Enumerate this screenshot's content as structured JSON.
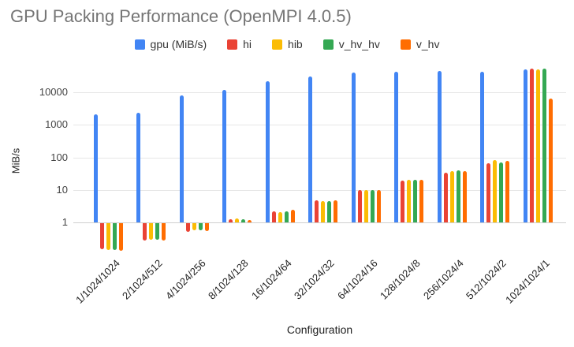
{
  "chart_data": {
    "type": "bar",
    "title": "GPU Packing Performance (OpenMPI 4.0.5)",
    "xlabel": "Configuration",
    "ylabel": "MiB/s",
    "y_scale": "log",
    "y_ticks": [
      1,
      10,
      100,
      1000,
      10000
    ],
    "ylim": [
      0.1,
      60000
    ],
    "grid": true,
    "legend_position": "top",
    "categories": [
      "1/1024/1024",
      "2/1024/512",
      "4/1024/256",
      "8/1024/128",
      "16/1024/64",
      "32/1024/32",
      "64/1024/16",
      "128/1024/8",
      "256/1024/4",
      "512/1024/2",
      "1024/1024/1"
    ],
    "series": [
      {
        "name": "gpu (MiB/s)",
        "color": "#4285F4",
        "values": [
          2100,
          2400,
          8000,
          12000,
          22000,
          31000,
          40000,
          43000,
          46000,
          43000,
          52000
        ]
      },
      {
        "name": "hi",
        "color": "#EA4335",
        "values": [
          0.16,
          0.3,
          0.55,
          1.25,
          2.2,
          4.7,
          10,
          19,
          33,
          68,
          55000
        ]
      },
      {
        "name": "hib",
        "color": "#FBBC04",
        "values": [
          0.15,
          0.31,
          0.6,
          1.3,
          2.1,
          4.4,
          9.8,
          20,
          38,
          81,
          50000
        ]
      },
      {
        "name": "v_hv_hv",
        "color": "#34A853",
        "values": [
          0.15,
          0.31,
          0.6,
          1.25,
          2.2,
          4.6,
          10,
          20,
          39,
          70,
          55000
        ]
      },
      {
        "name": "v_hv",
        "color": "#FF6D01",
        "values": [
          0.14,
          0.29,
          0.58,
          1.2,
          2.4,
          4.9,
          10,
          20,
          38,
          80,
          6300
        ]
      }
    ],
    "colors": {
      "title_text": "#757575",
      "axis_text": "#444444",
      "gridline": "#E6E6E6",
      "baseline": "#CFCFCF"
    }
  }
}
